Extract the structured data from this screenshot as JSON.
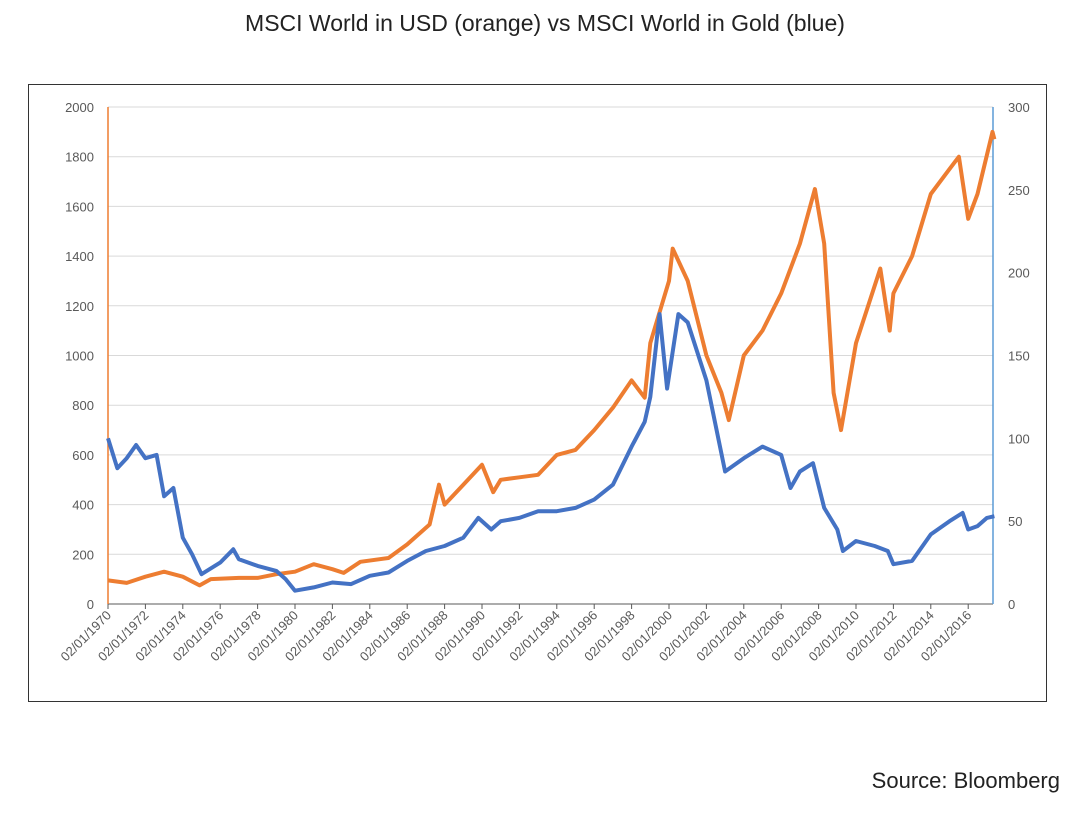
{
  "chart_data": {
    "type": "line",
    "title": "MSCI World in USD (orange) vs MSCI World in Gold (blue)",
    "source": "Source: Bloomberg",
    "x_range": [
      1970.0,
      2017.4
    ],
    "x_tick_labels": [
      "02/01/1970",
      "02/01/1972",
      "02/01/1974",
      "02/01/1976",
      "02/01/1978",
      "02/01/1980",
      "02/01/1982",
      "02/01/1984",
      "02/01/1986",
      "02/01/1988",
      "02/01/1990",
      "02/01/1992",
      "02/01/1994",
      "02/01/1996",
      "02/01/1998",
      "02/01/2000",
      "02/01/2002",
      "02/01/2004",
      "02/01/2006",
      "02/01/2008",
      "02/01/2010",
      "02/01/2012",
      "02/01/2014",
      "02/01/2016"
    ],
    "y_left": {
      "range": [
        0,
        2000
      ],
      "ticks": [
        0,
        200,
        400,
        600,
        800,
        1000,
        1200,
        1400,
        1600,
        1800,
        2000
      ]
    },
    "y_right": {
      "range": [
        0,
        300
      ],
      "ticks": [
        0,
        50,
        100,
        150,
        200,
        250,
        300
      ]
    },
    "grid": true,
    "colors": {
      "orange": "#ED7D31",
      "blue": "#4472C4",
      "right_axis": "#5B9BD5"
    },
    "series": [
      {
        "color": "#ED7D31",
        "axis": "left",
        "x": [
          1970,
          1971,
          1972,
          1973,
          1974,
          1974.9,
          1975.5,
          1977,
          1978,
          1979,
          1980,
          1981,
          1982,
          1982.6,
          1983.5,
          1985,
          1986,
          1987.2,
          1987.7,
          1988,
          1989,
          1990,
          1990.6,
          1991,
          1992,
          1993,
          1994,
          1995,
          1996,
          1997,
          1998,
          1998.7,
          1999,
          2000,
          2000.2,
          2001,
          2002,
          2002.8,
          2003.2,
          2004,
          2005,
          2006,
          2007,
          2007.8,
          2008.3,
          2008.8,
          2009.2,
          2010,
          2011.3,
          2011.8,
          2012,
          2013,
          2014,
          2015,
          2015.5,
          2016,
          2016.5,
          2017.3,
          2017.4
        ],
        "y": [
          95,
          85,
          110,
          130,
          110,
          75,
          100,
          105,
          105,
          120,
          130,
          160,
          140,
          125,
          170,
          185,
          240,
          320,
          480,
          400,
          480,
          560,
          450,
          500,
          510,
          520,
          600,
          620,
          700,
          790,
          900,
          830,
          1050,
          1300,
          1430,
          1300,
          1000,
          850,
          740,
          1000,
          1100,
          1250,
          1450,
          1670,
          1450,
          850,
          700,
          1050,
          1350,
          1100,
          1250,
          1400,
          1650,
          1750,
          1800,
          1550,
          1650,
          1900,
          1870
        ]
      },
      {
        "color": "#4472C4",
        "axis": "right",
        "x": [
          1970,
          1970.5,
          1971,
          1971.5,
          1972,
          1972.6,
          1973,
          1973.5,
          1974,
          1974.5,
          1975,
          1976,
          1976.7,
          1977,
          1978,
          1979,
          1979.5,
          1980,
          1981,
          1982,
          1983,
          1984,
          1985,
          1986,
          1987,
          1988,
          1989,
          1989.8,
          1990.5,
          1991,
          1992,
          1993,
          1994,
          1995,
          1996,
          1997,
          1998,
          1998.7,
          1999,
          1999.5,
          1999.9,
          2000.5,
          2001,
          2002,
          2003,
          2004,
          2005,
          2006,
          2006.5,
          2007,
          2007.7,
          2008.3,
          2009,
          2009.3,
          2010,
          2011,
          2011.7,
          2012,
          2013,
          2014,
          2015,
          2015.7,
          2016,
          2016.5,
          2017,
          2017.4
        ],
        "y": [
          100,
          82,
          88,
          96,
          88,
          90,
          65,
          70,
          40,
          30,
          18,
          25,
          33,
          27,
          23,
          20,
          15,
          8,
          10,
          13,
          12,
          17,
          19,
          26,
          32,
          35,
          40,
          52,
          45,
          50,
          52,
          56,
          56,
          58,
          63,
          72,
          95,
          110,
          125,
          175,
          130,
          175,
          170,
          135,
          80,
          88,
          95,
          90,
          70,
          80,
          85,
          58,
          45,
          32,
          38,
          35,
          32,
          24,
          26,
          42,
          50,
          55,
          45,
          47,
          52,
          53
        ]
      }
    ]
  }
}
